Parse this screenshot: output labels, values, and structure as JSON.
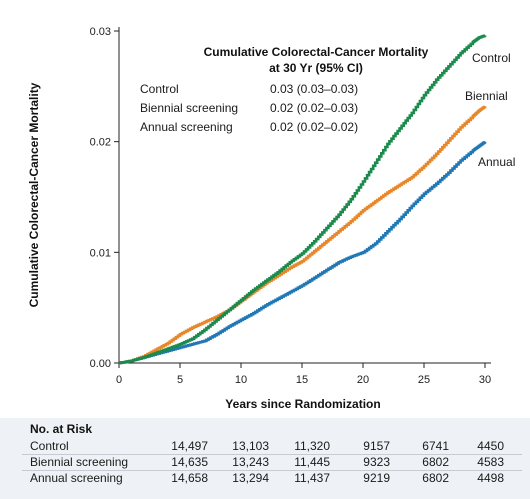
{
  "chart_data": {
    "type": "line",
    "step": true,
    "xlabel": "Years since Randomization",
    "ylabel": "Cumulative Colorectal-Cancer Mortality",
    "xlim": [
      0,
      30
    ],
    "ylim": [
      0,
      0.03
    ],
    "xticks": [
      "0",
      "5",
      "10",
      "15",
      "20",
      "25",
      "30"
    ],
    "yticks": [
      "0.00",
      "0.01",
      "0.02",
      "0.03"
    ],
    "grid": false,
    "legend": {
      "title_line1": "Cumulative Colorectal-Cancer Mortality",
      "title_line2": "at 30 Yr (95% CI)",
      "placement": "top-center",
      "entries": [
        {
          "label": "Control",
          "value": "0.03 (0.03–0.03)"
        },
        {
          "label": "Biennial screening",
          "value": "0.02 (0.02–0.03)"
        },
        {
          "label": "Annual screening",
          "value": "0.02 (0.02–0.02)"
        }
      ]
    },
    "series": [
      {
        "name": "Control",
        "end_label": "Control",
        "color": "#1b8a4c",
        "x": [
          0,
          1,
          2,
          3,
          4,
          5,
          6,
          7,
          8,
          9,
          10,
          11,
          12,
          13,
          14,
          15,
          16,
          17,
          18,
          19,
          20,
          21,
          22,
          23,
          24,
          25,
          26,
          27,
          28,
          29,
          29.5,
          30
        ],
        "y": [
          0,
          0.0002,
          0.0005,
          0.0009,
          0.0013,
          0.0017,
          0.0022,
          0.003,
          0.0039,
          0.0048,
          0.0057,
          0.0066,
          0.0074,
          0.0082,
          0.0091,
          0.0099,
          0.011,
          0.0122,
          0.0134,
          0.0148,
          0.0164,
          0.0181,
          0.0198,
          0.0212,
          0.0226,
          0.0242,
          0.0256,
          0.0268,
          0.028,
          0.029,
          0.0294,
          0.0296
        ]
      },
      {
        "name": "Biennial",
        "end_label": "Biennial",
        "color": "#e8872a",
        "x": [
          0,
          1,
          2,
          3,
          4,
          5,
          6,
          7,
          8,
          9,
          10,
          11,
          12,
          13,
          14,
          15,
          16,
          17,
          18,
          19,
          20,
          21,
          22,
          23,
          24,
          25,
          26,
          27,
          28,
          29,
          29.5,
          30
        ],
        "y": [
          0,
          0.0002,
          0.0006,
          0.0012,
          0.0018,
          0.0026,
          0.0032,
          0.0037,
          0.0042,
          0.0048,
          0.0056,
          0.0064,
          0.0072,
          0.0079,
          0.0086,
          0.0092,
          0.0101,
          0.011,
          0.0119,
          0.0128,
          0.0138,
          0.0146,
          0.0154,
          0.0161,
          0.0168,
          0.0178,
          0.0189,
          0.0201,
          0.0213,
          0.0223,
          0.0228,
          0.0232
        ]
      },
      {
        "name": "Annual",
        "end_label": "Annual",
        "color": "#1f77b4",
        "x": [
          0,
          1,
          2,
          3,
          4,
          5,
          6,
          7,
          8,
          9,
          10,
          11,
          12,
          13,
          14,
          15,
          16,
          17,
          18,
          19,
          20,
          21,
          22,
          23,
          24,
          25,
          26,
          27,
          28,
          29,
          29.5,
          30
        ],
        "y": [
          0,
          0.0002,
          0.0005,
          0.0008,
          0.0011,
          0.0014,
          0.0017,
          0.002,
          0.0026,
          0.0033,
          0.0039,
          0.0045,
          0.0052,
          0.0058,
          0.0064,
          0.007,
          0.0077,
          0.0084,
          0.0091,
          0.0096,
          0.01,
          0.0108,
          0.0119,
          0.013,
          0.0142,
          0.0153,
          0.0162,
          0.0172,
          0.0183,
          0.0192,
          0.0196,
          0.02
        ]
      }
    ]
  },
  "risk_table": {
    "title": "No. at Risk",
    "rows": [
      {
        "label": "Control",
        "values": [
          "14,497",
          "13,103",
          "11,320",
          "9157",
          "6741",
          "4450"
        ]
      },
      {
        "label": "Biennial screening",
        "values": [
          "14,635",
          "13,243",
          "11,445",
          "9323",
          "6802",
          "4583"
        ]
      },
      {
        "label": "Annual screening",
        "values": [
          "14,658",
          "13,294",
          "11,437",
          "9219",
          "6802",
          "4498"
        ]
      }
    ]
  }
}
